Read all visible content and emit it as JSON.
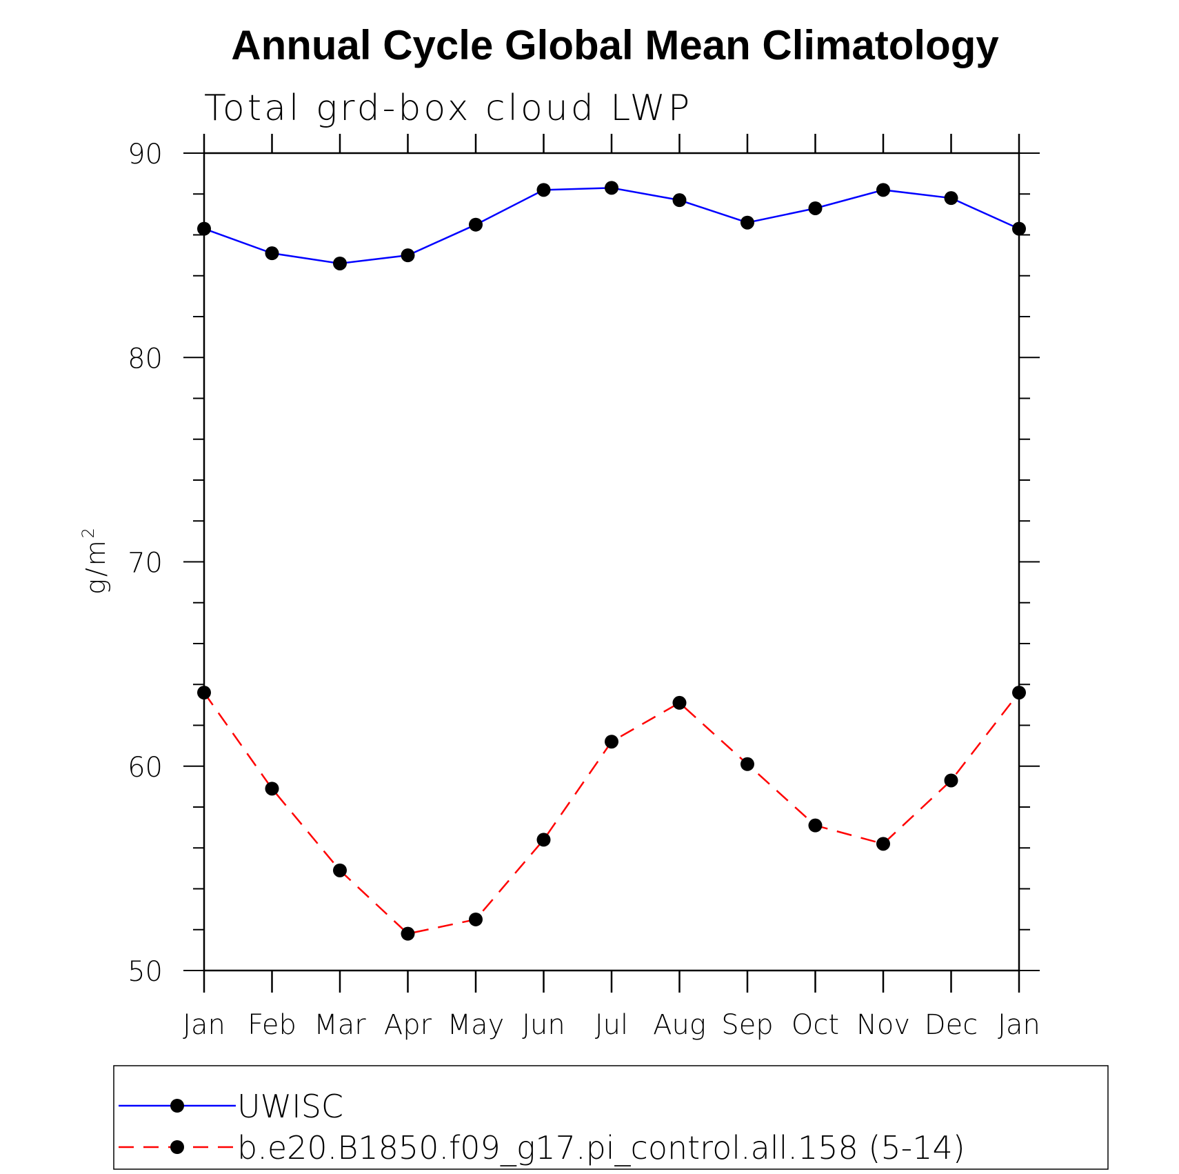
{
  "chart_data": {
    "type": "line",
    "title": "Annual Cycle Global Mean Climatology",
    "subtitle": "Total grd-box cloud LWP",
    "xlabel": "",
    "ylabel": "g/m",
    "ylabel_superscript": "2",
    "categories": [
      "Jan",
      "Feb",
      "Mar",
      "Apr",
      "May",
      "Jun",
      "Jul",
      "Aug",
      "Sep",
      "Oct",
      "Nov",
      "Dec",
      "Jan"
    ],
    "ylim": [
      50,
      90
    ],
    "yticks": [
      "50",
      "60",
      "70",
      "80",
      "90"
    ],
    "grid": false,
    "legend_position": "bottom",
    "series": [
      {
        "name": "UWISC",
        "color": "#0000ff",
        "dash": "solid",
        "values": [
          86.3,
          85.1,
          84.6,
          85.0,
          86.5,
          88.2,
          88.3,
          87.7,
          86.6,
          87.3,
          88.2,
          87.8,
          86.3
        ]
      },
      {
        "name": "b.e20.B1850.f09_g17.pi_control.all.158 (5-14)",
        "color": "#ff0000",
        "dash": "dashed",
        "values": [
          63.6,
          58.9,
          54.9,
          51.8,
          52.5,
          56.4,
          61.2,
          63.1,
          60.1,
          57.1,
          56.2,
          59.3,
          63.6
        ]
      }
    ]
  }
}
